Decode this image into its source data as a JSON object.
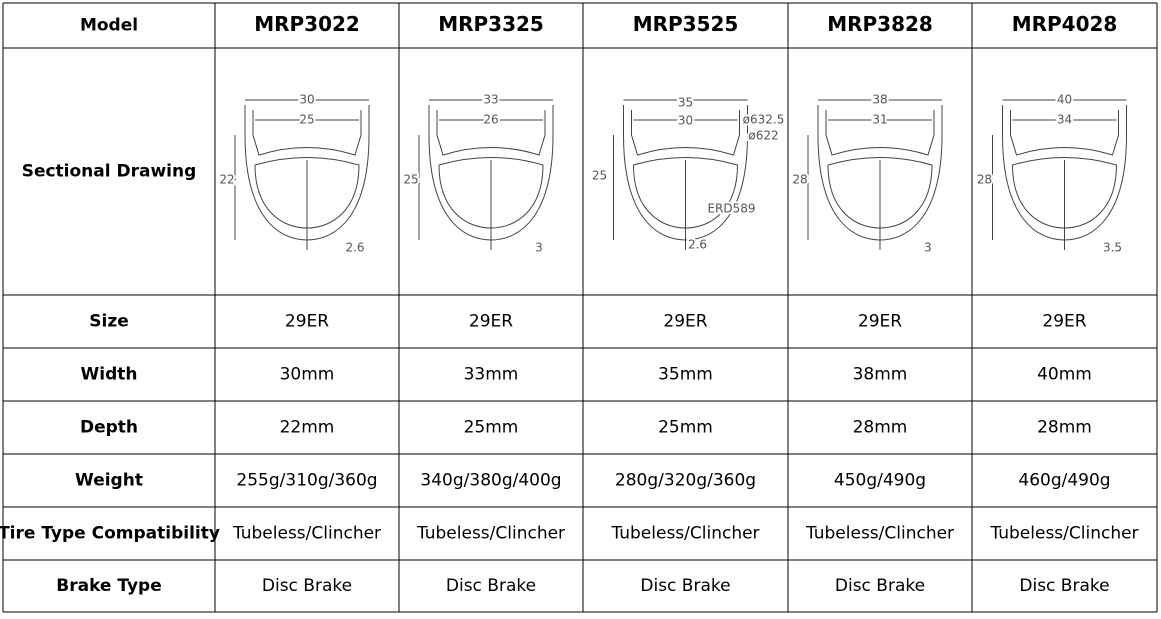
{
  "table": {
    "columns": [
      "Model",
      "MRP3022",
      "MRP3325",
      "MRP3525",
      "MRP3828",
      "MRP4028"
    ],
    "drawing_row_label": "Sectional Drawing",
    "drawings": [
      [
        "30",
        "25",
        "22",
        "2.6"
      ],
      [
        "33",
        "26",
        "25",
        "3"
      ],
      [
        "35",
        "30",
        "ø632.5",
        "ø622",
        "25",
        "ERD589",
        "2.6"
      ],
      [
        "38",
        "31",
        "28",
        "3"
      ],
      [
        "40",
        "34",
        "28",
        "3.5"
      ]
    ],
    "rows": [
      [
        "Size",
        "29ER",
        "29ER",
        "29ER",
        "29ER",
        "29ER"
      ],
      [
        "Width",
        "30mm",
        "33mm",
        "35mm",
        "38mm",
        "40mm"
      ],
      [
        "Depth",
        "22mm",
        "25mm",
        "25mm",
        "28mm",
        "28mm"
      ],
      [
        "Weight",
        "255g/310g/360g",
        "340g/380g/400g",
        "280g/320g/360g",
        "450g/490g",
        "460g/490g"
      ],
      [
        "Tire Type Compatibility",
        "Tubeless/Clincher",
        "Tubeless/Clincher",
        "Tubeless/Clincher",
        "Tubeless/Clincher",
        "Tubeless/Clincher"
      ],
      [
        "Brake Type",
        "Disc Brake",
        "Disc Brake",
        "Disc Brake",
        "Disc Brake",
        "Disc Brake"
      ]
    ]
  }
}
